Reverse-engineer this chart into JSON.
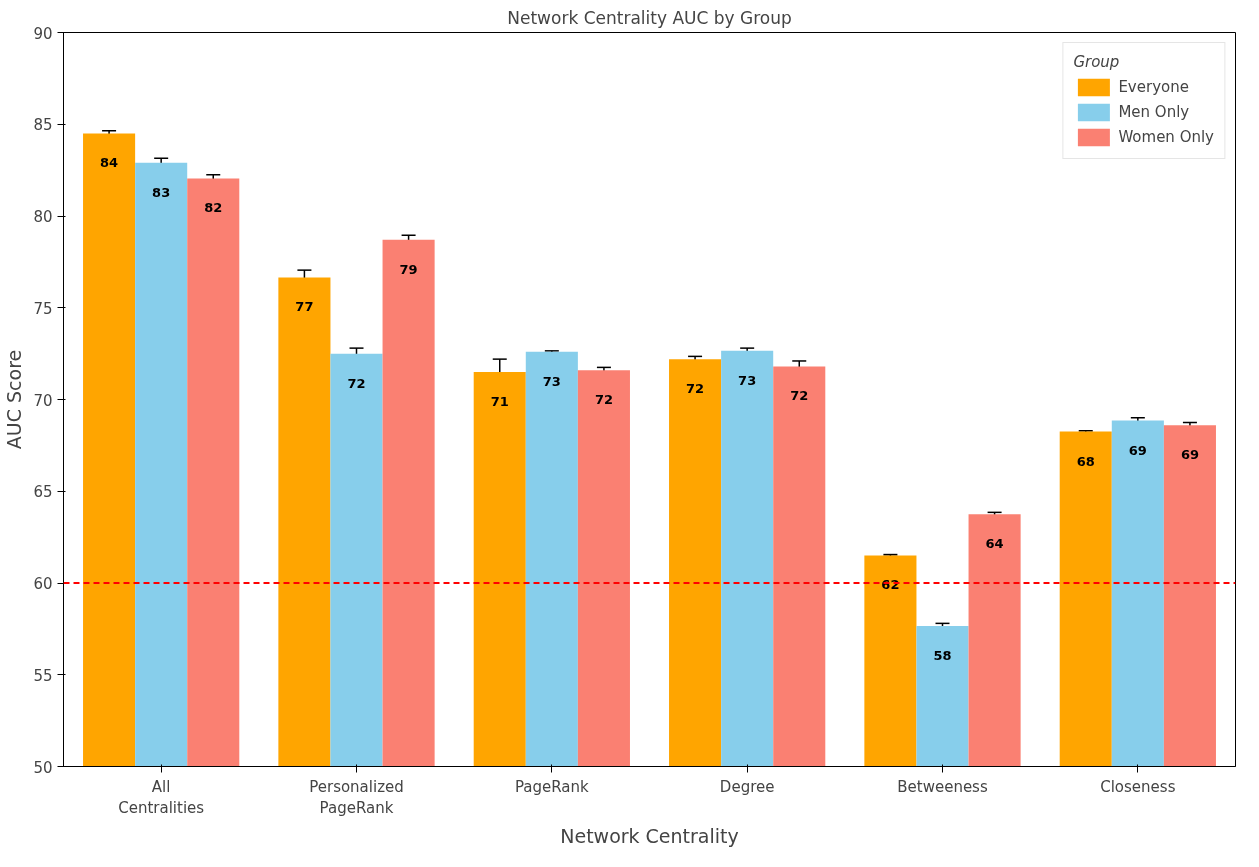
{
  "chart_data": {
    "type": "bar",
    "title": "Network Centrality AUC by Group",
    "xlabel": "Network Centrality",
    "ylabel": "AUC Score",
    "legend_title": "Group",
    "legend": "top right",
    "grid": false,
    "categories": [
      "All Centralities",
      "Personalized PageRank",
      "PageRank",
      "Degree",
      "Betweeness",
      "Closeness"
    ],
    "ylim": [
      50,
      90
    ],
    "yticks": [
      50,
      55,
      60,
      65,
      70,
      75,
      80,
      85,
      90
    ],
    "series": [
      {
        "name": "Everyone",
        "color": "#ffa500",
        "values": [
          84.5,
          76.65,
          71.5,
          72.2,
          61.5,
          68.25
        ],
        "errors": [
          0.15,
          0.4,
          0.7,
          0.15,
          0.05,
          0.05
        ],
        "value_labels": [
          "84",
          "77",
          "71",
          "72",
          "62",
          "68"
        ]
      },
      {
        "name": "Men Only",
        "color": "#87ceeb",
        "values": [
          82.9,
          72.5,
          72.6,
          72.65,
          57.65,
          68.85
        ],
        "errors": [
          0.25,
          0.3,
          0.05,
          0.15,
          0.15,
          0.15
        ],
        "value_labels": [
          "83",
          "72",
          "73",
          "73",
          "58",
          "69"
        ]
      },
      {
        "name": "Women Only",
        "color": "#fa8072",
        "values": [
          82.05,
          78.7,
          71.6,
          71.8,
          63.75,
          68.6
        ],
        "errors": [
          0.2,
          0.25,
          0.15,
          0.3,
          0.1,
          0.15
        ],
        "value_labels": [
          "82",
          "79",
          "72",
          "72",
          "64",
          "69"
        ]
      }
    ],
    "ref_lines": [
      {
        "axis": "y",
        "value": 60,
        "color": "#ff0000",
        "line_style": "dashed"
      }
    ]
  }
}
